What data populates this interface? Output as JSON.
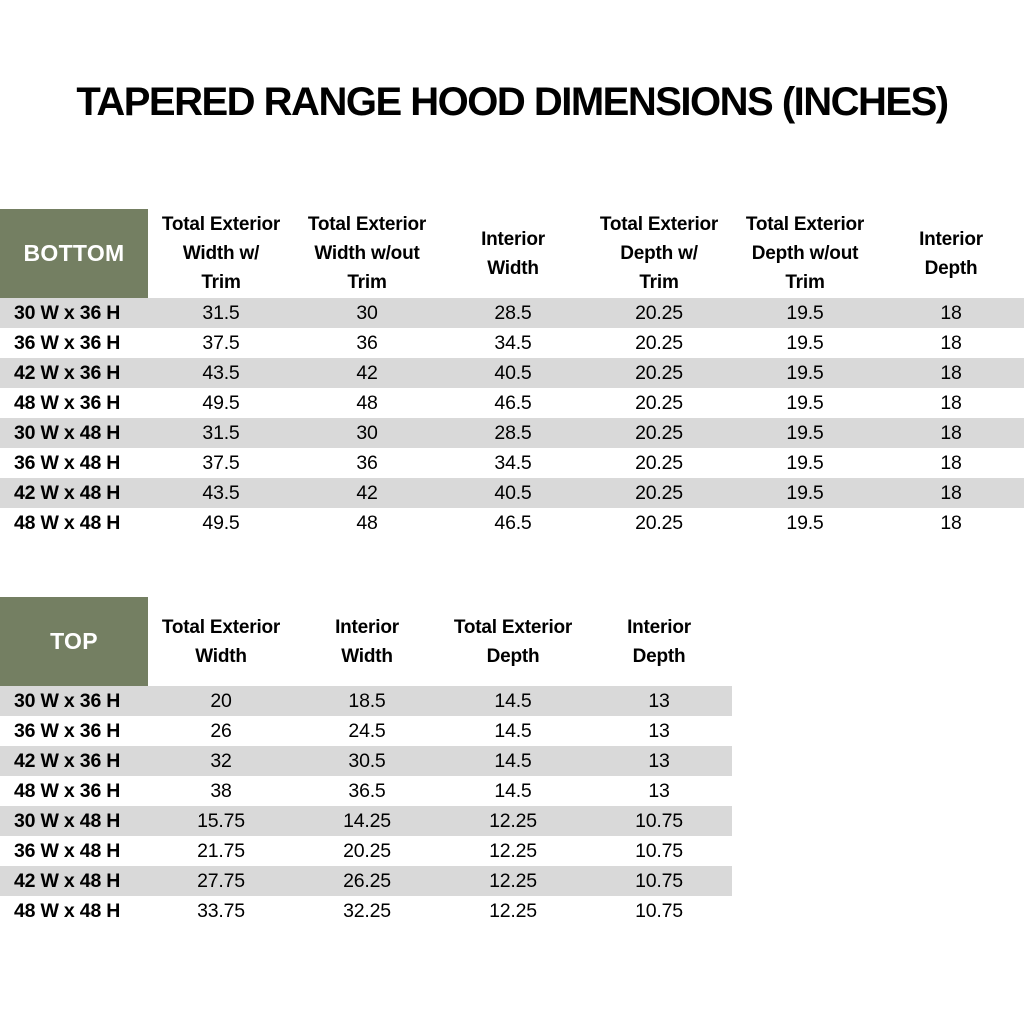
{
  "title": "TAPERED RANGE HOOD DIMENSIONS (INCHES)",
  "colors": {
    "header_green": "#747F62",
    "row_gray": "#D9D9D9",
    "row_white": "#FFFFFF",
    "header_text_on_green": "#FFFFFF",
    "body_text": "#000000"
  },
  "tables": [
    {
      "label": "BOTTOM",
      "columns": [
        {
          "label": "Total Exterior Width w/ Trim",
          "lines": [
            "Total Exterior",
            "Width w/",
            "Trim"
          ]
        },
        {
          "label": "Total Exterior Width w/out Trim",
          "lines": [
            "Total Exterior",
            "Width w/out",
            "Trim"
          ]
        },
        {
          "label": "Interior Width",
          "lines": [
            "Interior",
            "Width"
          ]
        },
        {
          "label": "Total Exterior Depth w/ Trim",
          "lines": [
            "Total Exterior",
            "Depth w/",
            "Trim"
          ]
        },
        {
          "label": "Total Exterior Depth w/out Trim",
          "lines": [
            "Total Exterior",
            "Depth w/out",
            "Trim"
          ]
        },
        {
          "label": "Interior Depth",
          "lines": [
            "Interior",
            "Depth"
          ]
        }
      ],
      "rows": [
        {
          "label": "30 W x 36 H",
          "values": [
            "31.5",
            "30",
            "28.5",
            "20.25",
            "19.5",
            "18"
          ]
        },
        {
          "label": "36 W x 36 H",
          "values": [
            "37.5",
            "36",
            "34.5",
            "20.25",
            "19.5",
            "18"
          ]
        },
        {
          "label": "42 W x 36 H",
          "values": [
            "43.5",
            "42",
            "40.5",
            "20.25",
            "19.5",
            "18"
          ]
        },
        {
          "label": "48 W x 36 H",
          "values": [
            "49.5",
            "48",
            "46.5",
            "20.25",
            "19.5",
            "18"
          ]
        },
        {
          "label": "30 W x 48 H",
          "values": [
            "31.5",
            "30",
            "28.5",
            "20.25",
            "19.5",
            "18"
          ]
        },
        {
          "label": "36 W x 48 H",
          "values": [
            "37.5",
            "36",
            "34.5",
            "20.25",
            "19.5",
            "18"
          ]
        },
        {
          "label": "42 W x 48 H",
          "values": [
            "43.5",
            "42",
            "40.5",
            "20.25",
            "19.5",
            "18"
          ]
        },
        {
          "label": "48 W x 48 H",
          "values": [
            "49.5",
            "48",
            "46.5",
            "20.25",
            "19.5",
            "18"
          ]
        }
      ]
    },
    {
      "label": "TOP",
      "columns": [
        {
          "label": "Total Exterior Width",
          "lines": [
            "Total Exterior",
            "Width"
          ]
        },
        {
          "label": "Interior Width",
          "lines": [
            "Interior",
            "Width"
          ]
        },
        {
          "label": "Total Exterior Depth",
          "lines": [
            "Total Exterior",
            "Depth"
          ]
        },
        {
          "label": "Interior Depth",
          "lines": [
            "Interior",
            "Depth"
          ]
        }
      ],
      "rows": [
        {
          "label": "30 W x 36 H",
          "values": [
            "20",
            "18.5",
            "14.5",
            "13"
          ]
        },
        {
          "label": "36 W x 36 H",
          "values": [
            "26",
            "24.5",
            "14.5",
            "13"
          ]
        },
        {
          "label": "42 W x 36 H",
          "values": [
            "32",
            "30.5",
            "14.5",
            "13"
          ]
        },
        {
          "label": "48 W x 36 H",
          "values": [
            "38",
            "36.5",
            "14.5",
            "13"
          ]
        },
        {
          "label": "30 W x 48 H",
          "values": [
            "15.75",
            "14.25",
            "12.25",
            "10.75"
          ]
        },
        {
          "label": "36 W x 48 H",
          "values": [
            "21.75",
            "20.25",
            "12.25",
            "10.75"
          ]
        },
        {
          "label": "42 W x 48 H",
          "values": [
            "27.75",
            "26.25",
            "12.25",
            "10.75"
          ]
        },
        {
          "label": "48 W x 48 H",
          "values": [
            "33.75",
            "32.25",
            "12.25",
            "10.75"
          ]
        }
      ]
    }
  ]
}
